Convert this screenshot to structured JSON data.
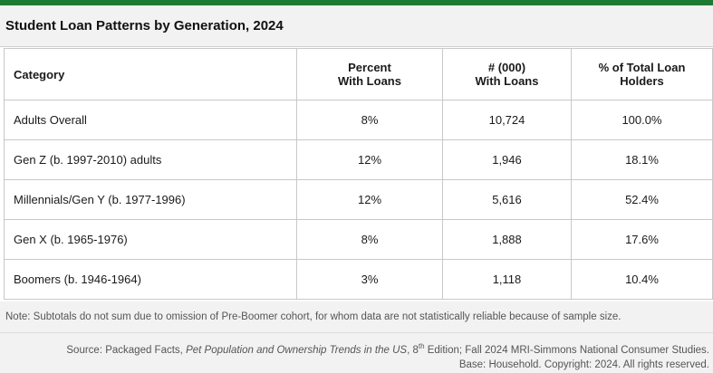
{
  "title": "Student Loan Patterns by Generation, 2024",
  "colors": {
    "accent": "#1e7b34",
    "band": "#f2f2f2",
    "border": "#c8c8c8"
  },
  "table": {
    "headers": [
      {
        "line1": "Category",
        "line2": ""
      },
      {
        "line1": "Percent",
        "line2": "With Loans"
      },
      {
        "line1": "# (000)",
        "line2": "With Loans"
      },
      {
        "line1": "% of Total Loan",
        "line2": "Holders"
      }
    ],
    "rows": [
      {
        "category": "Adults Overall",
        "percent": "8%",
        "count": "10,724",
        "share": "100.0%"
      },
      {
        "category": "Gen Z (b. 1997-2010) adults",
        "percent": "12%",
        "count": "1,946",
        "share": "18.1%"
      },
      {
        "category": "Millennials/Gen Y (b. 1977-1996)",
        "percent": "12%",
        "count": "5,616",
        "share": "52.4%"
      },
      {
        "category": "Gen X (b. 1965-1976)",
        "percent": "8%",
        "count": "1,888",
        "share": "17.6%"
      },
      {
        "category": "Boomers (b. 1946-1964)",
        "percent": "3%",
        "count": "1,118",
        "share": "10.4%"
      }
    ]
  },
  "note": "Note: Subtotals do not sum due to omission of Pre-Boomer cohort, for whom data are not statistically reliable because of sample size.",
  "source": {
    "prefix": "Source: Packaged Facts, ",
    "report": "Pet Population and Ownership Trends in the US",
    "edition_num": ", 8",
    "edition_sup": "th",
    "suffix": " Edition; Fall 2024 MRI-Simmons National Consumer Studies.",
    "line2": "Base: Household. Copyright: 2024. All rights reserved."
  }
}
